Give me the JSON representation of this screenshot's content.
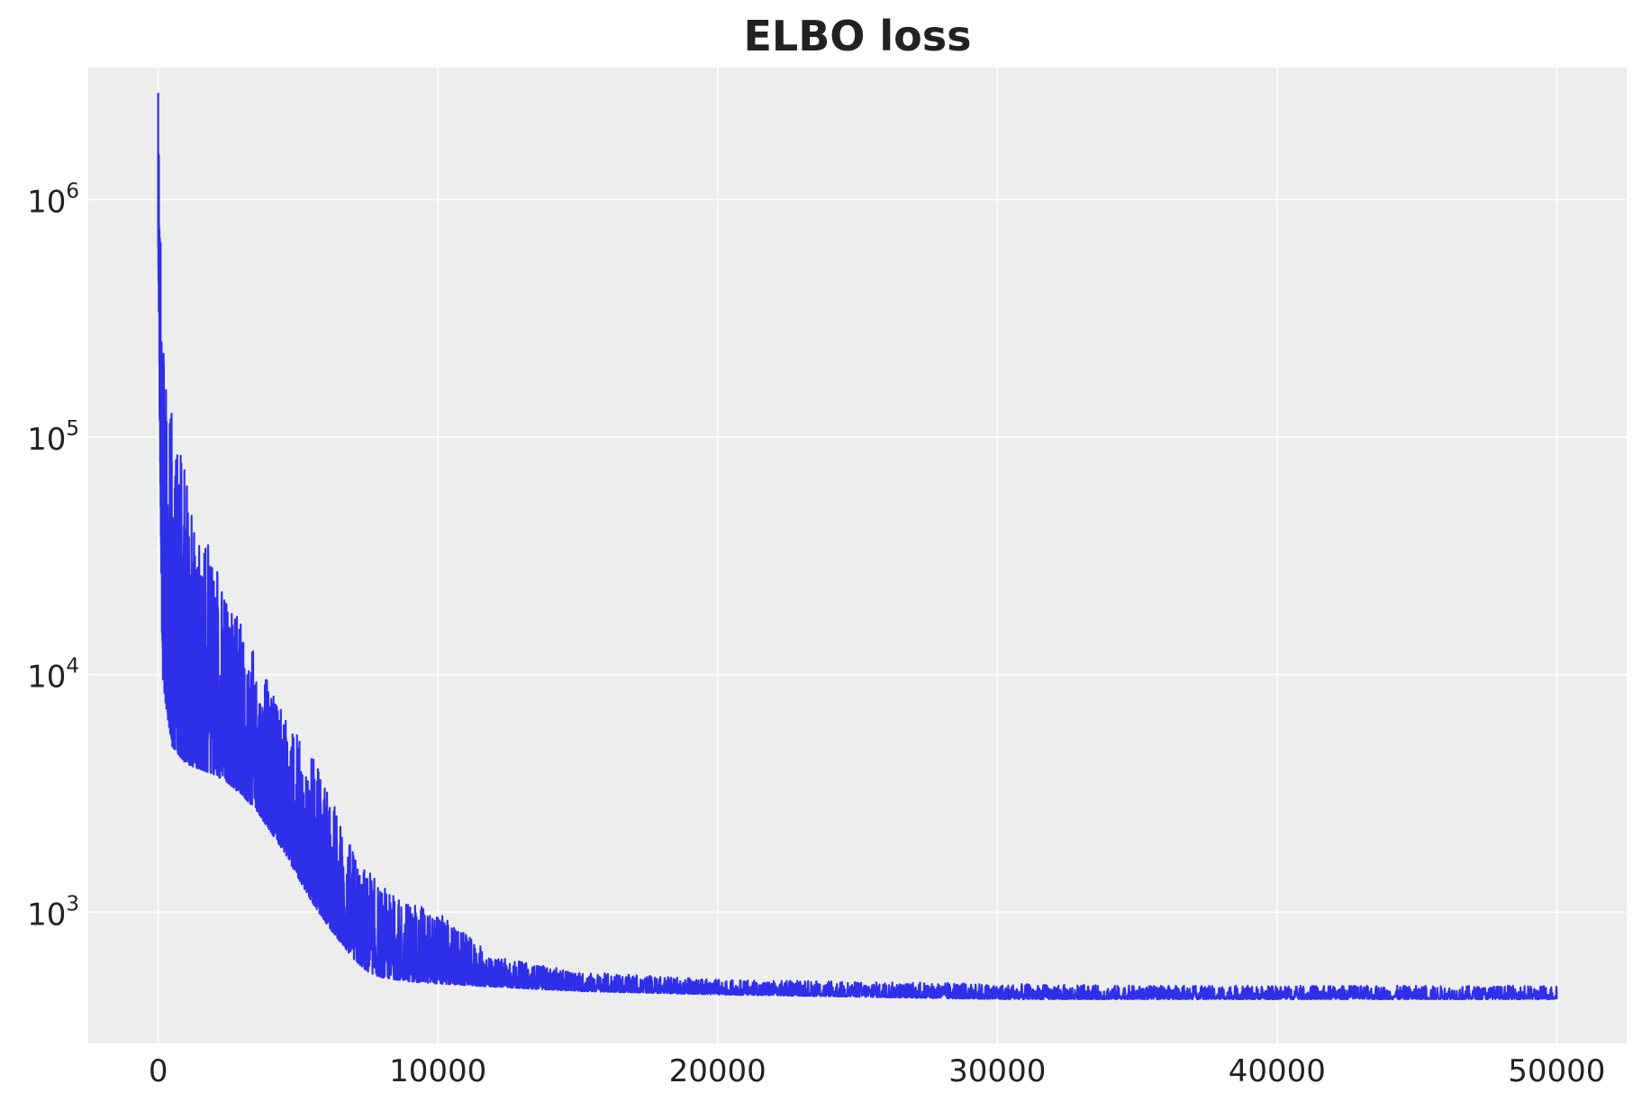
{
  "chart_data": {
    "type": "line",
    "title": "ELBO loss",
    "xlabel": "",
    "ylabel": "",
    "y_scale": "log",
    "xlim": [
      -2500,
      52500
    ],
    "ylim": [
      280,
      3600000
    ],
    "x_ticks": [
      0,
      10000,
      20000,
      30000,
      40000,
      50000
    ],
    "x_tick_labels": [
      "0",
      "10000",
      "20000",
      "30000",
      "40000",
      "50000"
    ],
    "y_ticks": [
      1000,
      10000,
      100000,
      1000000
    ],
    "y_tick_labels": [
      {
        "base": "10",
        "exp": "3"
      },
      {
        "base": "10",
        "exp": "4"
      },
      {
        "base": "10",
        "exp": "5"
      },
      {
        "base": "10",
        "exp": "6"
      }
    ],
    "grid": true,
    "background_color": "#ededed",
    "line_color": "#2f2fea",
    "series": [
      {
        "x": [
          0,
          50,
          150,
          300,
          500,
          800,
          1000,
          1500,
          2000,
          2500,
          3000,
          3500,
          4000,
          4500,
          5000,
          5500,
          6000,
          6500,
          7000,
          7500,
          8000,
          9000,
          10000,
          12000,
          15000,
          20000,
          25000,
          30000,
          35000,
          40000,
          45000,
          50000
        ],
        "low": [
          650000,
          120000,
          10000,
          7000,
          5000,
          4500,
          4200,
          4000,
          3800,
          3500,
          3100,
          2700,
          2200,
          1800,
          1400,
          1100,
          900,
          750,
          630,
          560,
          530,
          510,
          500,
          485,
          465,
          450,
          440,
          430,
          430,
          430,
          430,
          430
        ],
        "high": [
          2800000,
          1000000,
          320000,
          150000,
          130000,
          95000,
          65000,
          45000,
          30000,
          22000,
          16000,
          12000,
          9000,
          7000,
          5500,
          4500,
          3800,
          2500,
          1800,
          1500,
          1300,
          1100,
          1000,
          650,
          560,
          520,
          510,
          500,
          490,
          490,
          490,
          490
        ]
      }
    ]
  }
}
